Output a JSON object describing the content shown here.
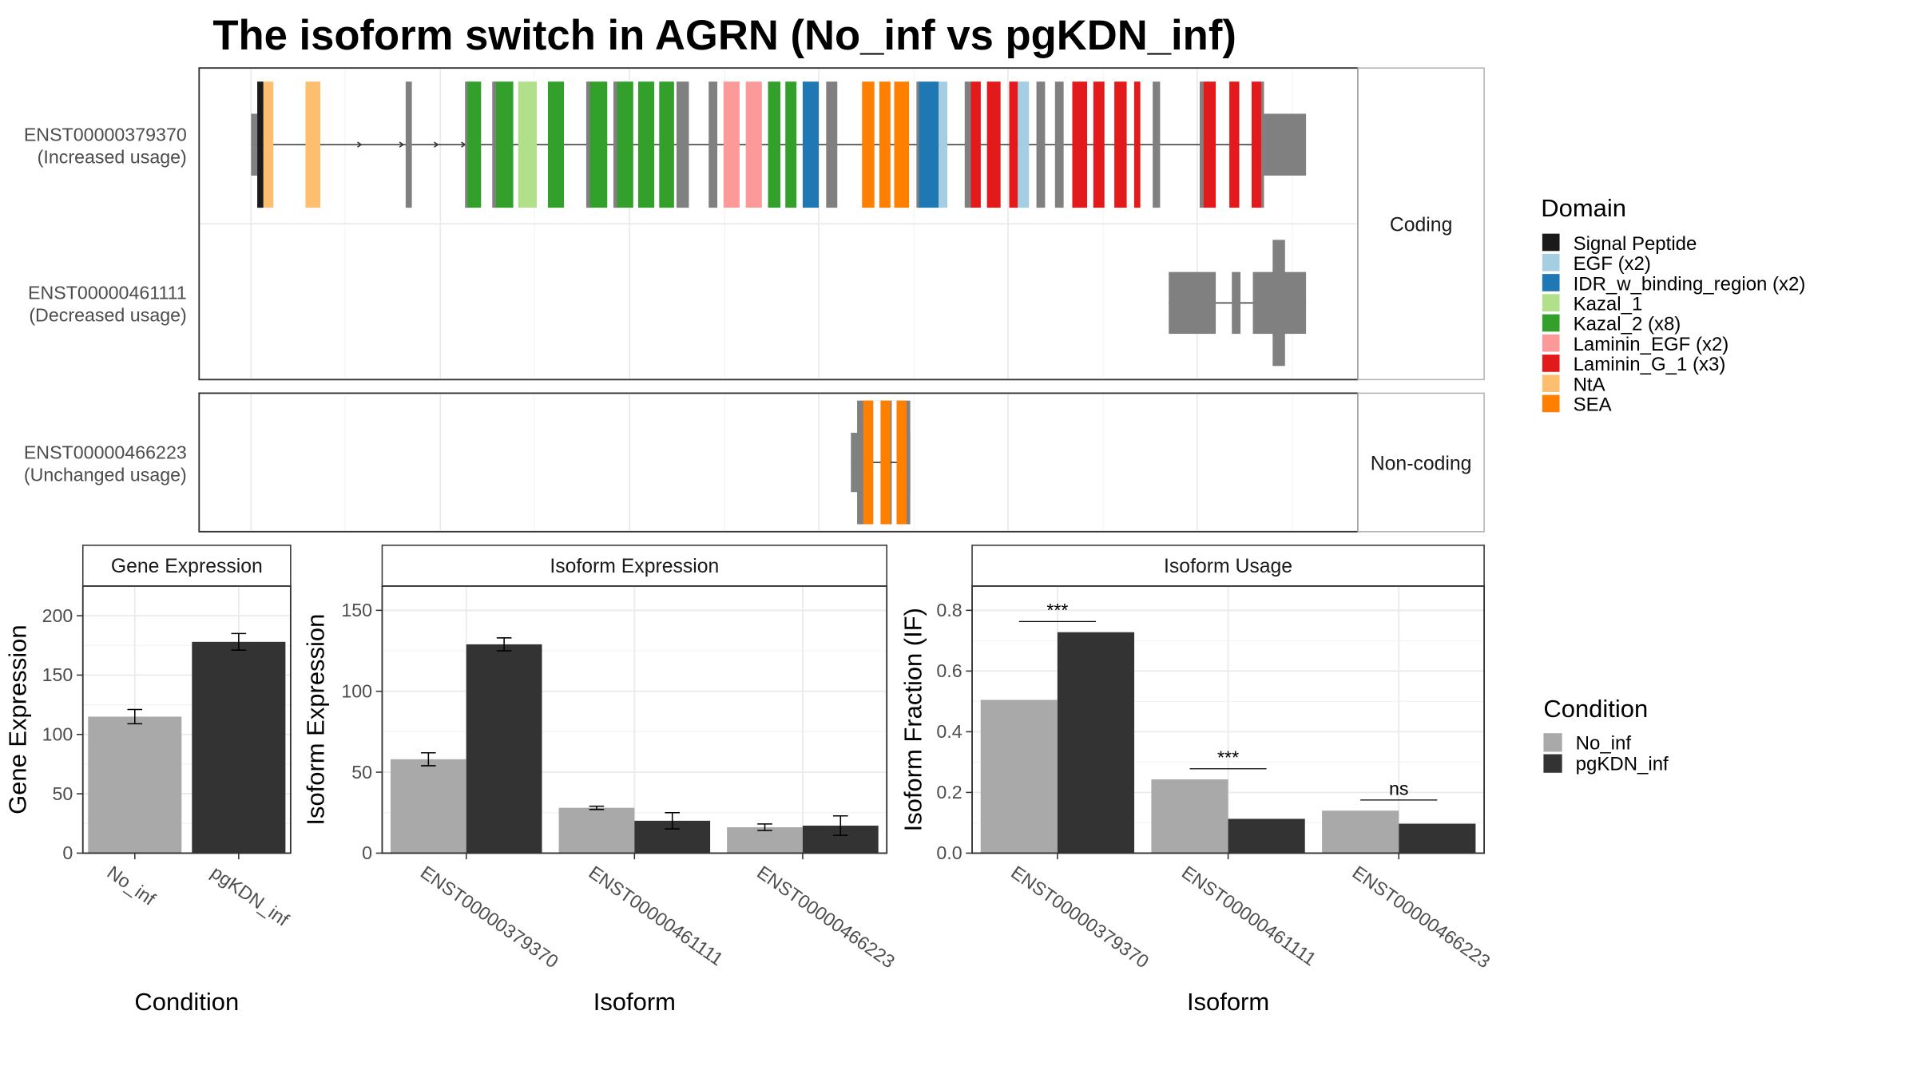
{
  "title": "The isoform switch in AGRN (No_inf vs pgKDN_inf)",
  "colors": {
    "exon": "#808080",
    "no_inf": "#a9a9a9",
    "pgkdn_inf": "#333333",
    "grid": "#ebebeb",
    "panel_border": "#333333"
  },
  "transcript_plot": {
    "facets": [
      "Coding",
      "Non-coding"
    ],
    "transcripts": [
      {
        "id": "ENST00000379370",
        "usage": "(Increased usage)",
        "facet": "Coding"
      },
      {
        "id": "ENST00000461111",
        "usage": "(Decreased usage)",
        "facet": "Coding"
      },
      {
        "id": "ENST00000466223",
        "usage": "(Unchanged usage)",
        "facet": "Non-coding"
      }
    ]
  },
  "domain_legend": {
    "title": "Domain",
    "items": [
      {
        "label": "Signal Peptide",
        "color": "#1a1a1a"
      },
      {
        "label": "EGF (x2)",
        "color": "#a6cee3"
      },
      {
        "label": "IDR_w_binding_region (x2)",
        "color": "#1f78b4"
      },
      {
        "label": "Kazal_1",
        "color": "#b2df8a"
      },
      {
        "label": "Kazal_2 (x8)",
        "color": "#33a02c"
      },
      {
        "label": "Laminin_EGF (x2)",
        "color": "#fb9a99"
      },
      {
        "label": "Laminin_G_1 (x3)",
        "color": "#e31a1c"
      },
      {
        "label": "NtA",
        "color": "#fdbf6f"
      },
      {
        "label": "SEA",
        "color": "#ff7f00"
      }
    ]
  },
  "condition_legend": {
    "title": "Condition",
    "items": [
      {
        "label": "No_inf",
        "color": "#a9a9a9"
      },
      {
        "label": "pgKDN_inf",
        "color": "#333333"
      }
    ]
  },
  "chart_data": [
    {
      "type": "bar",
      "title": "Gene Expression",
      "xlabel": "Condition",
      "ylabel": "Gene Expression",
      "categories": [
        "No_inf",
        "pgKDN_inf"
      ],
      "values": [
        115,
        178
      ],
      "errors": [
        6,
        7
      ],
      "fills": [
        "no_inf",
        "pgkdn_inf"
      ],
      "ylim": [
        0,
        225
      ],
      "yticks": [
        0,
        50,
        100,
        150,
        200
      ],
      "grid": true
    },
    {
      "type": "bar",
      "title": "Isoform Expression",
      "xlabel": "Isoform",
      "ylabel": "Isoform Expression",
      "categories": [
        "ENST00000379370",
        "ENST00000461111",
        "ENST00000466223"
      ],
      "series": [
        {
          "name": "No_inf",
          "values": [
            58,
            28,
            16
          ],
          "errors": [
            4,
            1,
            2
          ]
        },
        {
          "name": "pgKDN_inf",
          "values": [
            129,
            20,
            17
          ],
          "errors": [
            4,
            5,
            6
          ]
        }
      ],
      "ylim": [
        0,
        165
      ],
      "yticks": [
        0,
        50,
        100,
        150
      ],
      "grid": true
    },
    {
      "type": "bar",
      "title": "Isoform Usage",
      "xlabel": "Isoform",
      "ylabel": "Isoform Fraction (IF)",
      "categories": [
        "ENST00000379370",
        "ENST00000461111",
        "ENST00000466223"
      ],
      "series": [
        {
          "name": "No_inf",
          "values": [
            0.505,
            0.243,
            0.14
          ]
        },
        {
          "name": "pgKDN_inf",
          "values": [
            0.728,
            0.113,
            0.097
          ]
        }
      ],
      "significance": [
        "***",
        "***",
        "ns"
      ],
      "ylim": [
        0,
        0.88
      ],
      "yticks": [
        "0.0",
        "0.2",
        "0.4",
        "0.6",
        "0.8"
      ],
      "grid": true
    }
  ]
}
